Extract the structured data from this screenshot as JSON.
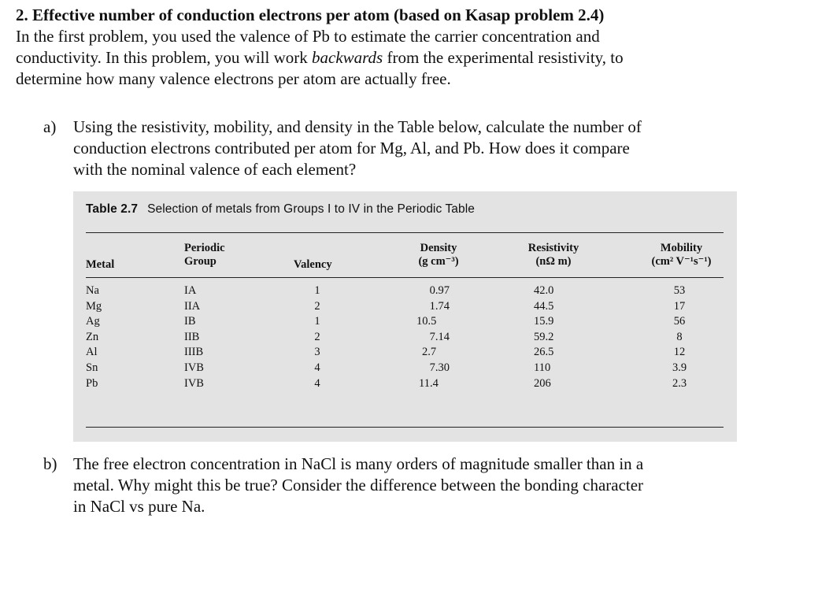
{
  "problem": {
    "heading": "2. Effective number of conduction electrons per atom (based on Kasap problem 2.4)",
    "intro_lines": [
      "In the first problem, you used the valence of Pb to estimate the carrier concentration and",
      "conductivity.  In this problem, you will work ",
      "determine how many valence electrons per atom are actually free."
    ],
    "intro_em": "backwards",
    "intro_line2_rest": " from the experimental resistivity, to"
  },
  "part_a": {
    "marker": "a)",
    "lines": [
      "Using the resistivity, mobility, and density in the Table below, calculate the number of",
      "conduction electrons contributed per atom for Mg, Al, and Pb.   How does it compare",
      "with the nominal valence of each element?"
    ]
  },
  "table": {
    "caption_number": "Table 2.7",
    "caption_text": "Selection of metals from Groups I to IV in the Periodic Table",
    "headers": {
      "metal": "Metal",
      "group_1": "Periodic",
      "group_2": "Group",
      "valency": "Valency",
      "density_1": "Density",
      "density_2": "(g cm⁻³)",
      "resistivity_1": "Resistivity",
      "resistivity_2": "(nΩ m)",
      "mobility_1": "Mobility",
      "mobility_2": "(cm² V⁻¹s⁻¹)"
    },
    "rows": [
      {
        "metal": "Na",
        "group": "IA",
        "valency": "1",
        "density": "0.97",
        "resistivity": "42.0",
        "mobility": "53"
      },
      {
        "metal": "Mg",
        "group": "IIA",
        "valency": "2",
        "density": "1.74",
        "resistivity": "44.5",
        "mobility": "17"
      },
      {
        "metal": "Ag",
        "group": "IB",
        "valency": "1",
        "density": "10.5",
        "resistivity": "15.9",
        "mobility": "56"
      },
      {
        "metal": "Zn",
        "group": "IIB",
        "valency": "2",
        "density": "7.14",
        "resistivity": "59.2",
        "mobility": "8"
      },
      {
        "metal": "Al",
        "group": "IIIB",
        "valency": "3",
        "density": "2.7",
        "resistivity": "26.5",
        "mobility": "12"
      },
      {
        "metal": "Sn",
        "group": "IVB",
        "valency": "4",
        "density": "7.30",
        "resistivity": "110",
        "mobility": "3.9"
      },
      {
        "metal": "Pb",
        "group": "IVB",
        "valency": "4",
        "density": "11.4",
        "resistivity": "206",
        "mobility": "2.3"
      }
    ]
  },
  "part_b": {
    "marker": "b)",
    "lines": [
      "The free electron concentration in NaCl is many orders of magnitude smaller than in a",
      "metal.   Why might this be true?  Consider the difference between the bonding character",
      "in NaCl vs pure Na."
    ]
  }
}
